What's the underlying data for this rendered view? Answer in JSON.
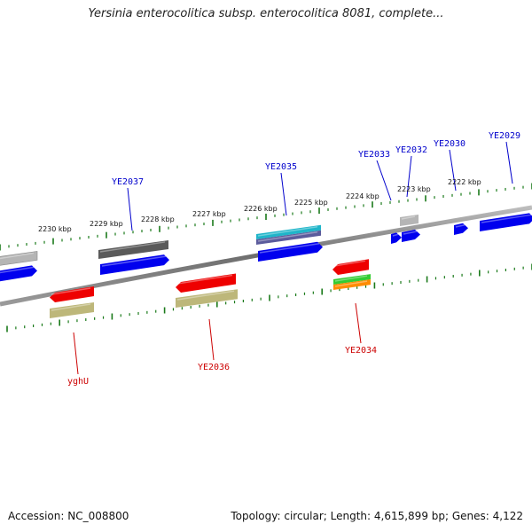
{
  "title": "Yersinia enterocolitica subsp. enterocolitica 8081, complete...",
  "footer": {
    "accession": "Accession: NC_008800",
    "stats": "Topology: circular; Length: 4,615,899 bp; Genes: 4,122"
  },
  "colors": {
    "forward_label": "#0000cc",
    "reverse_label": "#cc0000",
    "tick": "#1a7a1a",
    "backbone": "#888888"
  },
  "scale_labels": [
    "2230 kbp",
    "2229 kbp",
    "2228 kbp",
    "2227 kbp",
    "2226 kbp",
    "2225 kbp",
    "2224 kbp",
    "2223 kbp",
    "2222 kbp"
  ],
  "gene_labels": {
    "forward": [
      "YE2037",
      "YE2035",
      "YE2033",
      "YE2032",
      "YE2030",
      "YE2029"
    ],
    "reverse": [
      "yghU",
      "YE2036",
      "YE2034"
    ]
  }
}
